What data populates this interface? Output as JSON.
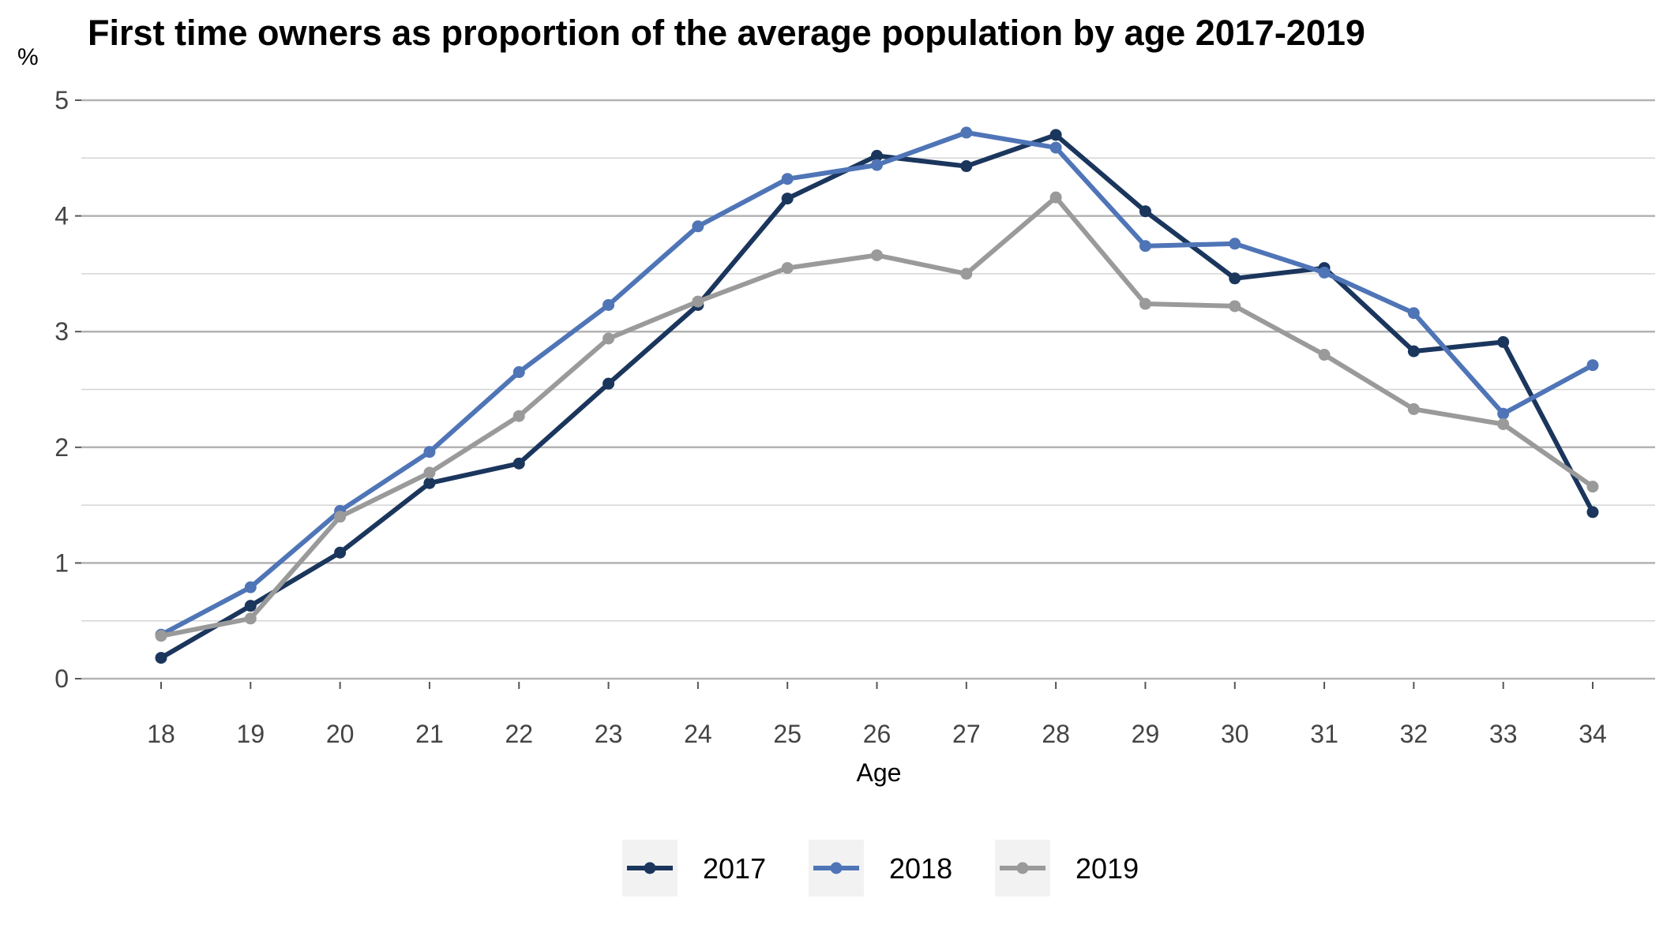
{
  "chart_data": {
    "type": "line",
    "title": "First time owners as proportion of the average population by age 2017-2019",
    "ylabel": "%",
    "xlabel": "Age",
    "ylim": [
      0,
      5
    ],
    "yticks": [
      0,
      1,
      2,
      3,
      4,
      5
    ],
    "grid": true,
    "legend_position": "bottom",
    "x": [
      18,
      19,
      20,
      21,
      22,
      23,
      24,
      25,
      26,
      27,
      28,
      29,
      30,
      31,
      32,
      33,
      34
    ],
    "series": [
      {
        "name": "2017",
        "color": "#1b365d",
        "values": [
          0.18,
          0.63,
          1.09,
          1.69,
          1.86,
          2.55,
          3.23,
          4.15,
          4.52,
          4.43,
          4.7,
          4.04,
          3.46,
          3.55,
          2.83,
          2.91,
          1.44
        ]
      },
      {
        "name": "2018",
        "color": "#4f75b7",
        "values": [
          0.38,
          0.79,
          1.45,
          1.96,
          2.65,
          3.23,
          3.91,
          4.32,
          4.44,
          4.72,
          4.59,
          3.74,
          3.76,
          3.51,
          3.16,
          2.29,
          2.71
        ]
      },
      {
        "name": "2019",
        "color": "#9a9a9a",
        "values": [
          0.37,
          0.52,
          1.4,
          1.78,
          2.27,
          2.94,
          3.26,
          3.55,
          3.66,
          3.5,
          4.16,
          3.24,
          3.22,
          2.8,
          2.33,
          2.2,
          1.66
        ]
      }
    ]
  }
}
